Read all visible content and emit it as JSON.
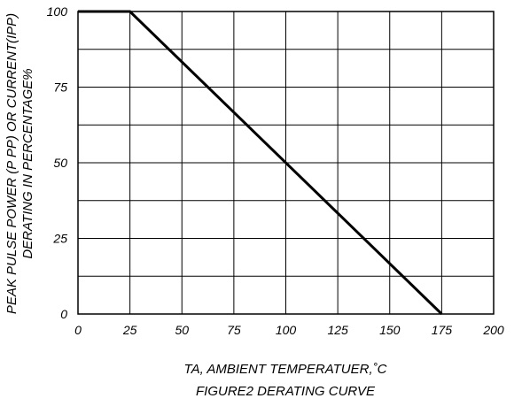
{
  "chart_data": {
    "type": "line",
    "x_ticks": [
      0,
      25,
      50,
      75,
      100,
      125,
      150,
      175,
      200
    ],
    "y_ticks": [
      0,
      25,
      50,
      75,
      100
    ],
    "xlim": [
      0,
      200
    ],
    "ylim": [
      0,
      100
    ],
    "grid": true,
    "series": [
      {
        "x": [
          0,
          25,
          175
        ],
        "y": [
          100,
          100,
          0
        ]
      }
    ],
    "ylabel_line1": "PEAK PULSE POWER (P PP) OR CURRENT(IPP)",
    "ylabel_line2": "DERATING IN PERCENTAGE%",
    "xlabel": "TA, AMBIENT TEMPERATUER,˚C",
    "caption": "FIGURE2 DERATING CURVE"
  }
}
